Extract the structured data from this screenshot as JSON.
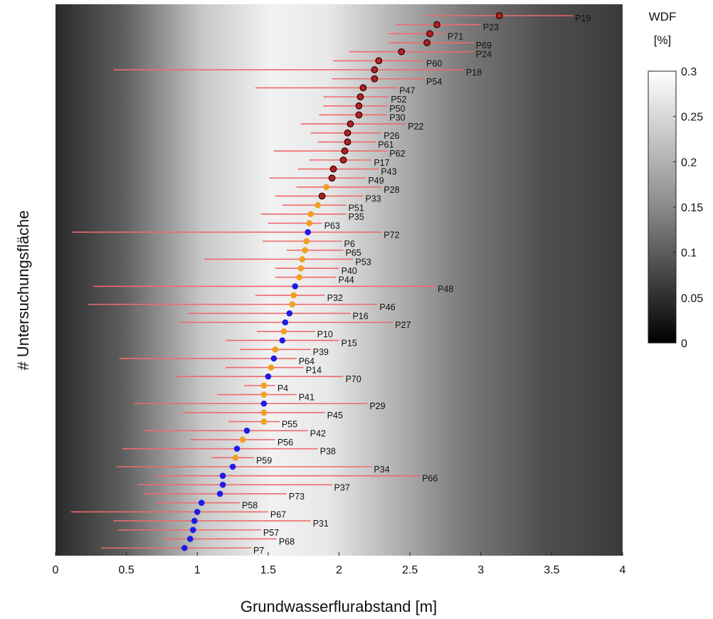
{
  "chart_data": {
    "type": "scatter",
    "title": "",
    "xlabel": "Grundwasserflurabstand [m]",
    "ylabel": "# Untersuchungsfläche",
    "xlim": [
      0,
      4
    ],
    "x_ticks": [
      "0",
      "0.5",
      "1",
      "1.5",
      "2",
      "2.5",
      "3",
      "3.5",
      "4"
    ],
    "grid": false,
    "background": "grayscale gradient of WDF along x (dark at edges, white near 1.5–2.0 m)",
    "colorbar": {
      "title_line1": "WDF",
      "title_line2": "[%]",
      "range": [
        0,
        0.3
      ],
      "ticks": [
        "0.3",
        "0.25",
        "0.2",
        "0.15",
        "0.1",
        "0.05",
        "0"
      ],
      "position": "right"
    },
    "colors": {
      "red_point": "#b22222",
      "orange_point": "#f0a020",
      "blue_point": "#1c1ce6",
      "range_line": "#f06a6a"
    },
    "points": [
      {
        "label": "P19",
        "x": 3.13,
        "lo": 2.6,
        "hi": 3.65,
        "color": "red"
      },
      {
        "label": "P23",
        "x": 2.69,
        "lo": 2.4,
        "hi": 3.0,
        "color": "red"
      },
      {
        "label": "P71",
        "x": 2.64,
        "lo": 2.35,
        "hi": 2.75,
        "color": "red"
      },
      {
        "label": "P69",
        "x": 2.62,
        "lo": 2.35,
        "hi": 2.95,
        "color": "red"
      },
      {
        "label": "P24",
        "x": 2.44,
        "lo": 2.07,
        "hi": 2.95,
        "color": "red"
      },
      {
        "label": "P60",
        "x": 2.28,
        "lo": 1.96,
        "hi": 2.6,
        "color": "red"
      },
      {
        "label": "P18",
        "x": 2.25,
        "lo": 0.41,
        "hi": 2.88,
        "color": "red"
      },
      {
        "label": "P54",
        "x": 2.25,
        "lo": 1.95,
        "hi": 2.6,
        "color": "red"
      },
      {
        "label": "P47",
        "x": 2.17,
        "lo": 1.41,
        "hi": 2.41,
        "color": "red"
      },
      {
        "label": "P52",
        "x": 2.15,
        "lo": 1.89,
        "hi": 2.35,
        "color": "red"
      },
      {
        "label": "P50",
        "x": 2.14,
        "lo": 1.89,
        "hi": 2.34,
        "color": "red"
      },
      {
        "label": "P30",
        "x": 2.14,
        "lo": 1.86,
        "hi": 2.34,
        "color": "red"
      },
      {
        "label": "P22",
        "x": 2.08,
        "lo": 1.73,
        "hi": 2.47,
        "color": "red"
      },
      {
        "label": "P26",
        "x": 2.06,
        "lo": 1.8,
        "hi": 2.3,
        "color": "red"
      },
      {
        "label": "P61",
        "x": 2.06,
        "lo": 1.85,
        "hi": 2.26,
        "color": "red"
      },
      {
        "label": "P62",
        "x": 2.04,
        "lo": 1.54,
        "hi": 2.34,
        "color": "red"
      },
      {
        "label": "P17",
        "x": 2.03,
        "lo": 1.79,
        "hi": 2.23,
        "color": "red"
      },
      {
        "label": "P43",
        "x": 1.96,
        "lo": 1.71,
        "hi": 2.28,
        "color": "red"
      },
      {
        "label": "P49",
        "x": 1.95,
        "lo": 1.51,
        "hi": 2.19,
        "color": "red"
      },
      {
        "label": "P28",
        "x": 1.91,
        "lo": 1.7,
        "hi": 2.3,
        "color": "orange"
      },
      {
        "label": "P33",
        "x": 1.88,
        "lo": 1.55,
        "hi": 2.17,
        "color": "red"
      },
      {
        "label": "P51",
        "x": 1.85,
        "lo": 1.6,
        "hi": 2.05,
        "color": "orange"
      },
      {
        "label": "P35",
        "x": 1.8,
        "lo": 1.45,
        "hi": 2.05,
        "color": "orange"
      },
      {
        "label": "P63",
        "x": 1.79,
        "lo": 1.5,
        "hi": 1.88,
        "color": "orange"
      },
      {
        "label": "P72",
        "x": 1.78,
        "lo": 0.12,
        "hi": 2.3,
        "color": "blue"
      },
      {
        "label": "P6",
        "x": 1.77,
        "lo": 1.46,
        "hi": 2.02,
        "color": "orange"
      },
      {
        "label": "P65",
        "x": 1.76,
        "lo": 1.63,
        "hi": 2.03,
        "color": "orange"
      },
      {
        "label": "P53",
        "x": 1.74,
        "lo": 1.05,
        "hi": 2.1,
        "color": "orange"
      },
      {
        "label": "P40",
        "x": 1.73,
        "lo": 1.55,
        "hi": 2.0,
        "color": "orange"
      },
      {
        "label": "P44",
        "x": 1.72,
        "lo": 1.55,
        "hi": 1.98,
        "color": "orange"
      },
      {
        "label": "P48",
        "x": 1.69,
        "lo": 0.27,
        "hi": 2.68,
        "color": "blue"
      },
      {
        "label": "P32",
        "x": 1.68,
        "lo": 1.41,
        "hi": 1.9,
        "color": "orange"
      },
      {
        "label": "P46",
        "x": 1.67,
        "lo": 0.23,
        "hi": 2.27,
        "color": "orange"
      },
      {
        "label": "P16",
        "x": 1.65,
        "lo": 0.93,
        "hi": 2.08,
        "color": "blue"
      },
      {
        "label": "P27",
        "x": 1.62,
        "lo": 0.87,
        "hi": 2.38,
        "color": "blue"
      },
      {
        "label": "P10",
        "x": 1.61,
        "lo": 1.42,
        "hi": 1.83,
        "color": "orange"
      },
      {
        "label": "P15",
        "x": 1.6,
        "lo": 1.2,
        "hi": 2.0,
        "color": "blue"
      },
      {
        "label": "P39",
        "x": 1.55,
        "lo": 1.3,
        "hi": 1.8,
        "color": "orange"
      },
      {
        "label": "P64",
        "x": 1.54,
        "lo": 0.45,
        "hi": 1.7,
        "color": "blue"
      },
      {
        "label": "P14",
        "x": 1.52,
        "lo": 1.2,
        "hi": 1.75,
        "color": "orange"
      },
      {
        "label": "P70",
        "x": 1.5,
        "lo": 0.85,
        "hi": 2.03,
        "color": "blue"
      },
      {
        "label": "P4",
        "x": 1.47,
        "lo": 1.33,
        "hi": 1.55,
        "color": "orange"
      },
      {
        "label": "P41",
        "x": 1.47,
        "lo": 1.14,
        "hi": 1.7,
        "color": "orange"
      },
      {
        "label": "P29",
        "x": 1.47,
        "lo": 0.55,
        "hi": 2.2,
        "color": "blue"
      },
      {
        "label": "P45",
        "x": 1.47,
        "lo": 0.9,
        "hi": 1.9,
        "color": "orange"
      },
      {
        "label": "P55",
        "x": 1.47,
        "lo": 1.22,
        "hi": 1.58,
        "color": "orange"
      },
      {
        "label": "P42",
        "x": 1.35,
        "lo": 0.63,
        "hi": 1.78,
        "color": "blue"
      },
      {
        "label": "P56",
        "x": 1.32,
        "lo": 0.95,
        "hi": 1.55,
        "color": "orange"
      },
      {
        "label": "P38",
        "x": 1.28,
        "lo": 0.47,
        "hi": 1.85,
        "color": "blue"
      },
      {
        "label": "P59",
        "x": 1.27,
        "lo": 1.1,
        "hi": 1.4,
        "color": "orange"
      },
      {
        "label": "P34",
        "x": 1.25,
        "lo": 0.43,
        "hi": 2.23,
        "color": "blue"
      },
      {
        "label": "P66",
        "x": 1.18,
        "lo": 0.72,
        "hi": 2.57,
        "color": "blue"
      },
      {
        "label": "P37",
        "x": 1.18,
        "lo": 0.58,
        "hi": 1.95,
        "color": "blue"
      },
      {
        "label": "P73",
        "x": 1.16,
        "lo": 0.62,
        "hi": 1.63,
        "color": "blue"
      },
      {
        "label": "P58",
        "x": 1.03,
        "lo": 0.7,
        "hi": 1.3,
        "color": "blue"
      },
      {
        "label": "P67",
        "x": 1.0,
        "lo": 0.11,
        "hi": 1.5,
        "color": "blue"
      },
      {
        "label": "P31",
        "x": 0.98,
        "lo": 0.41,
        "hi": 1.8,
        "color": "blue"
      },
      {
        "label": "P57",
        "x": 0.97,
        "lo": 0.44,
        "hi": 1.45,
        "color": "blue"
      },
      {
        "label": "P68",
        "x": 0.95,
        "lo": 0.76,
        "hi": 1.56,
        "color": "blue"
      },
      {
        "label": "P7",
        "x": 0.91,
        "lo": 0.32,
        "hi": 1.38,
        "color": "blue"
      }
    ]
  }
}
